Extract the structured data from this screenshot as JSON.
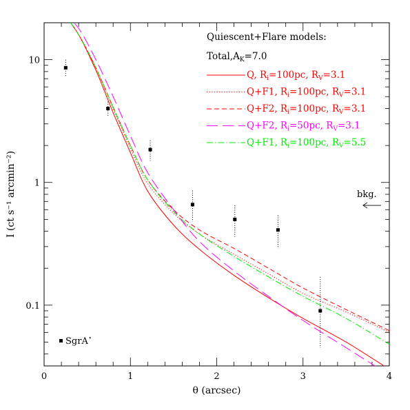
{
  "chart_data": {
    "type": "line",
    "xlabel": "θ (arcsec)",
    "ylabel": "I (ct s⁻¹ arcmin⁻²)",
    "xlim": [
      0,
      4
    ],
    "ylim": [
      0.032,
      20
    ],
    "yscale": "log",
    "xticks": [
      0,
      1,
      2,
      3,
      4
    ],
    "xtick_labels": [
      "0",
      "1",
      "2",
      "3",
      "4"
    ],
    "yticks": [
      0.1,
      1,
      10
    ],
    "ytick_labels": [
      "0.1",
      "1",
      "10"
    ],
    "grid": false,
    "legend": {
      "placement": "top-right",
      "title": "Quiescent+Flare models:",
      "subtitle": "Total,A",
      "subtitle_sub": "K",
      "subtitle_suffix": "=7.0"
    },
    "series": [
      {
        "name": "Q, R_i=100pc, R_V=3.1",
        "label_parts": {
          "pre": "Q, R",
          "sub1": "i",
          "mid": "=100pc, R",
          "sub2": "V",
          "post": "=3.1"
        },
        "color": "#ff0000",
        "dash": "solid",
        "x": [
          0.22,
          0.4,
          0.6,
          0.8,
          1.0,
          1.2,
          1.5,
          1.8,
          2.2,
          2.6,
          3.0,
          3.5,
          4.0
        ],
        "y": [
          24,
          16,
          8.2,
          3.7,
          1.75,
          0.85,
          0.45,
          0.285,
          0.175,
          0.115,
          0.078,
          0.05,
          0.03
        ]
      },
      {
        "name": "Q+F1, R_i=100pc, R_V=3.1",
        "label_parts": {
          "pre": "Q+F1, R",
          "sub1": "i",
          "mid": "=100pc, R",
          "sub2": "V",
          "post": "=3.1"
        },
        "color": "#ff0000",
        "dash": "dotted",
        "x": [
          0.22,
          0.4,
          0.6,
          0.8,
          1.0,
          1.2,
          1.5,
          1.8,
          2.2,
          2.6,
          3.0,
          3.5,
          4.0
        ],
        "y": [
          24,
          16,
          8.5,
          4.0,
          1.9,
          0.98,
          0.56,
          0.38,
          0.26,
          0.18,
          0.125,
          0.088,
          0.06
        ]
      },
      {
        "name": "Q+F2, R_i=100pc, R_V=3.1",
        "label_parts": {
          "pre": "Q+F2, R",
          "sub1": "i",
          "mid": "=100pc, R",
          "sub2": "V",
          "post": "=3.1"
        },
        "color": "#ff0000",
        "dash": "dashed",
        "x": [
          0.22,
          0.4,
          0.6,
          0.8,
          1.0,
          1.2,
          1.5,
          1.8,
          2.2,
          2.6,
          3.0,
          3.5,
          4.0
        ],
        "y": [
          24,
          16,
          8.6,
          4.1,
          2.0,
          1.05,
          0.6,
          0.41,
          0.29,
          0.2,
          0.138,
          0.092,
          0.062
        ]
      },
      {
        "name": "Q+F2, R_i=50pc, R_V=3.1",
        "label_parts": {
          "pre": "Q+F2, R",
          "sub1": "i",
          "mid": "=50pc, R",
          "sub2": "V",
          "post": "=3.1"
        },
        "color": "#ff00ff",
        "dash": "longdash",
        "x": [
          0.22,
          0.4,
          0.6,
          0.8,
          1.0,
          1.2,
          1.5,
          1.8,
          2.2,
          2.6,
          3.0,
          3.5,
          4.0
        ],
        "y": [
          24,
          18,
          10,
          5.0,
          2.4,
          1.2,
          0.6,
          0.33,
          0.19,
          0.118,
          0.075,
          0.045,
          0.027
        ]
      },
      {
        "name": "Q+F1, R_i=100pc, R_V=5.5",
        "label_parts": {
          "pre": "Q+F1, R",
          "sub1": "i",
          "mid": "=100pc, R",
          "sub2": "V",
          "post": "=5.5"
        },
        "color": "#00ee00",
        "dash": "dashdot",
        "x": [
          0.22,
          0.4,
          0.6,
          0.8,
          1.0,
          1.2,
          1.5,
          1.8,
          2.2,
          2.6,
          3.0,
          3.5,
          4.0
        ],
        "y": [
          24,
          16,
          8.6,
          4.1,
          2.0,
          1.05,
          0.58,
          0.38,
          0.25,
          0.17,
          0.118,
          0.078,
          0.048
        ]
      }
    ],
    "data_points": {
      "name": "SgrA*",
      "label_main": "SgrA",
      "label_sup": "⋆",
      "color": "#000000",
      "x": [
        0.25,
        0.74,
        1.23,
        1.72,
        2.21,
        2.71,
        3.2
      ],
      "y": [
        8.6,
        4.0,
        1.85,
        0.66,
        0.5,
        0.41,
        0.09
      ],
      "yerr_low": [
        7.2,
        3.45,
        1.5,
        0.48,
        0.36,
        0.29,
        0.045
      ],
      "yerr_high": [
        10.0,
        4.55,
        2.2,
        0.86,
        0.65,
        0.54,
        0.17
      ]
    },
    "annotations": {
      "bkg_label": "bkg.",
      "bkg_level": 0.65
    }
  }
}
